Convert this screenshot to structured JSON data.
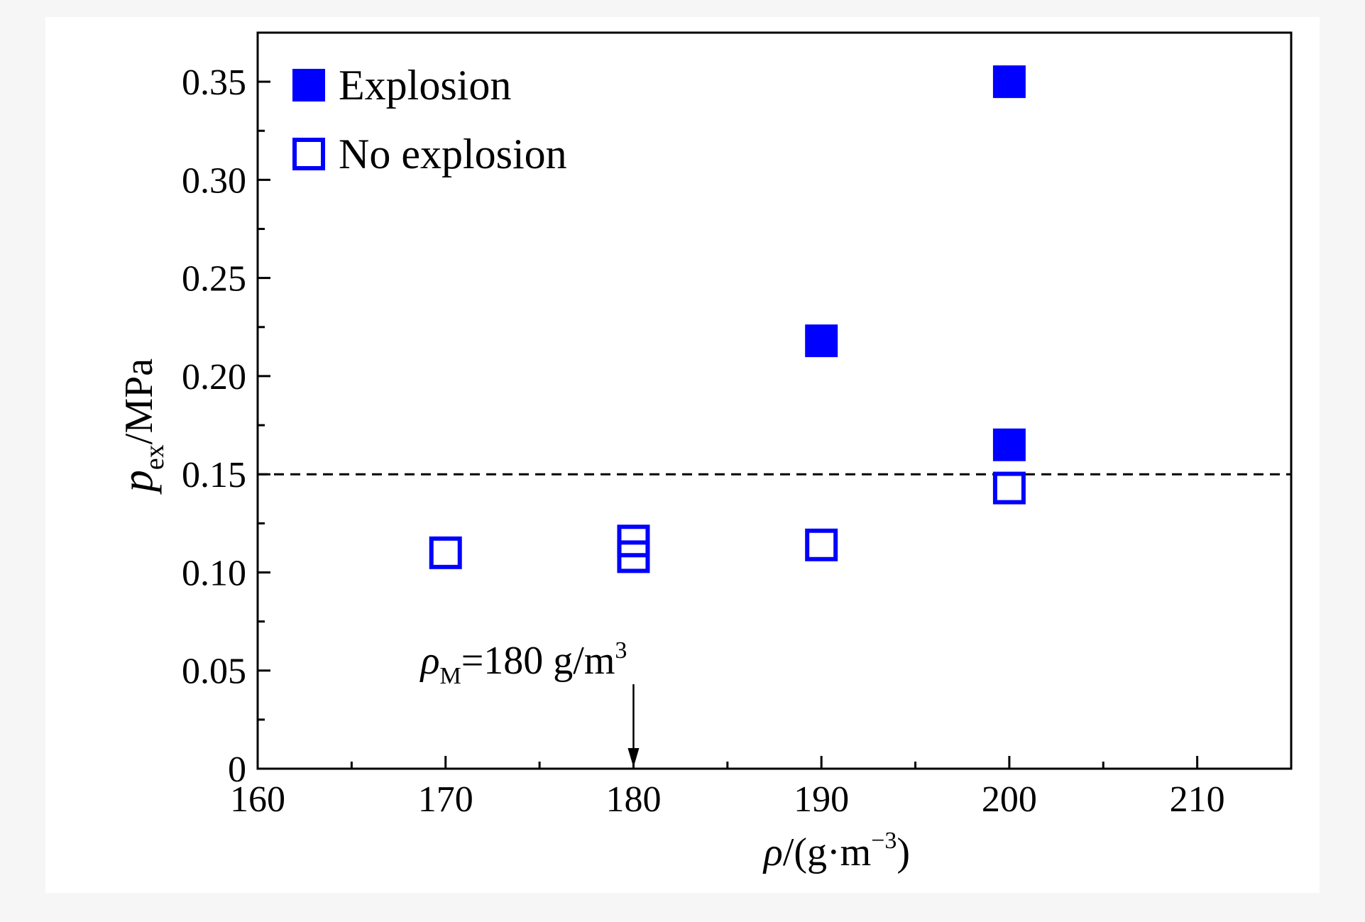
{
  "chart_data": {
    "type": "scatter",
    "xlabel": {
      "symbol": "ρ",
      "rest": "/(g·m",
      "sup": "−3",
      "close": ")"
    },
    "ylabel": {
      "symbol": "p",
      "sub": "ex",
      "rest": "/MPa"
    },
    "xlim": [
      160,
      215
    ],
    "ylim": [
      0,
      0.375
    ],
    "x_ticks": [
      160,
      170,
      180,
      190,
      200,
      210
    ],
    "x_tick_labels": [
      "160",
      "170",
      "180",
      "190",
      "200",
      "210"
    ],
    "y_ticks": [
      0,
      0.05,
      0.1,
      0.15,
      0.2,
      0.25,
      0.3,
      0.35
    ],
    "y_tick_labels": [
      "0",
      "0.05",
      "0.10",
      "0.15",
      "0.20",
      "0.25",
      "0.30",
      "0.35"
    ],
    "grid": false,
    "legend_position": "top-left",
    "series": [
      {
        "name": "Explosion",
        "marker": "filled-square",
        "color": "#0000ff",
        "points": [
          [
            190,
            0.218
          ],
          [
            200,
            0.165
          ],
          [
            200,
            0.35
          ]
        ]
      },
      {
        "name": "No explosion",
        "marker": "open-square",
        "color": "#0000ff",
        "points": [
          [
            170,
            0.11
          ],
          [
            180,
            0.108
          ],
          [
            180,
            0.116
          ],
          [
            190,
            0.114
          ],
          [
            200,
            0.143
          ]
        ]
      }
    ],
    "reference_line": {
      "y": 0.15,
      "style": "dashed",
      "color": "#000000"
    },
    "annotation": {
      "symbol": "ρ",
      "sub": "M",
      "rest": "=180 g/m",
      "sup": "3",
      "x": 180
    }
  }
}
